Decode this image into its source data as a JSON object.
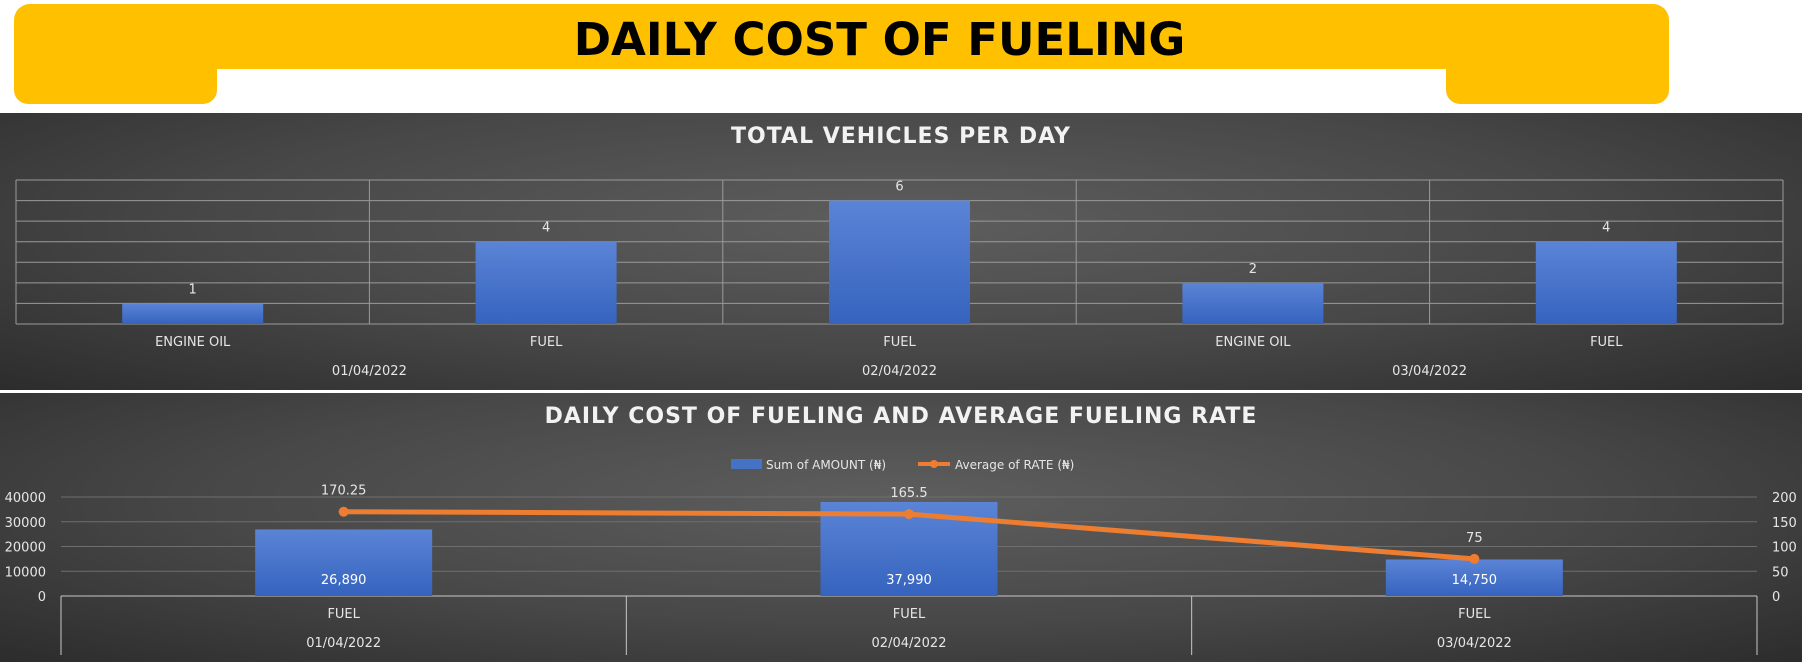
{
  "header": {
    "title": "DAILY COST OF FUELING"
  },
  "chart_data": [
    {
      "type": "bar",
      "title": "TOTAL VEHICLES PER DAY",
      "categories": [
        {
          "item": "ENGINE OIL",
          "date": "01/04/2022"
        },
        {
          "item": "FUEL",
          "date": "01/04/2022"
        },
        {
          "item": "FUEL",
          "date": "02/04/2022"
        },
        {
          "item": "ENGINE OIL",
          "date": "03/04/2022"
        },
        {
          "item": "FUEL",
          "date": "03/04/2022"
        }
      ],
      "date_groups": [
        "01/04/2022",
        "02/04/2022",
        "03/04/2022"
      ],
      "values": [
        1,
        4,
        6,
        2,
        4
      ],
      "data_labels": [
        "1",
        "4",
        "6",
        "2",
        "4"
      ],
      "ylim": [
        0,
        7
      ],
      "grid": true,
      "bar_color": "#4472C4"
    },
    {
      "type": "bar",
      "title": "DAILY COST OF FUELING AND AVERAGE FUELING RATE",
      "categories": [
        {
          "item": "FUEL",
          "date": "01/04/2022"
        },
        {
          "item": "FUEL",
          "date": "02/04/2022"
        },
        {
          "item": "FUEL",
          "date": "03/04/2022"
        }
      ],
      "series": [
        {
          "name": "Sum of AMOUNT (₦)",
          "type": "bar",
          "axis": "left",
          "values": [
            26890,
            37990,
            14750
          ],
          "data_labels": [
            "26,890",
            "37,990",
            "14,750"
          ],
          "color": "#4472C4"
        },
        {
          "name": "Average of RATE (₦)",
          "type": "line",
          "axis": "right",
          "values": [
            170.25,
            165.5,
            75
          ],
          "data_labels": [
            "170.25",
            "165.5",
            "75"
          ],
          "color": "#ED7D31"
        }
      ],
      "y_left": {
        "range": [
          0,
          40000
        ],
        "ticks": [
          "0",
          "10000",
          "20000",
          "30000",
          "40000"
        ]
      },
      "y_right": {
        "range": [
          0,
          200
        ],
        "ticks": [
          "0",
          "50",
          "100",
          "150",
          "200"
        ]
      },
      "legend": "top-center",
      "grid": true
    }
  ]
}
